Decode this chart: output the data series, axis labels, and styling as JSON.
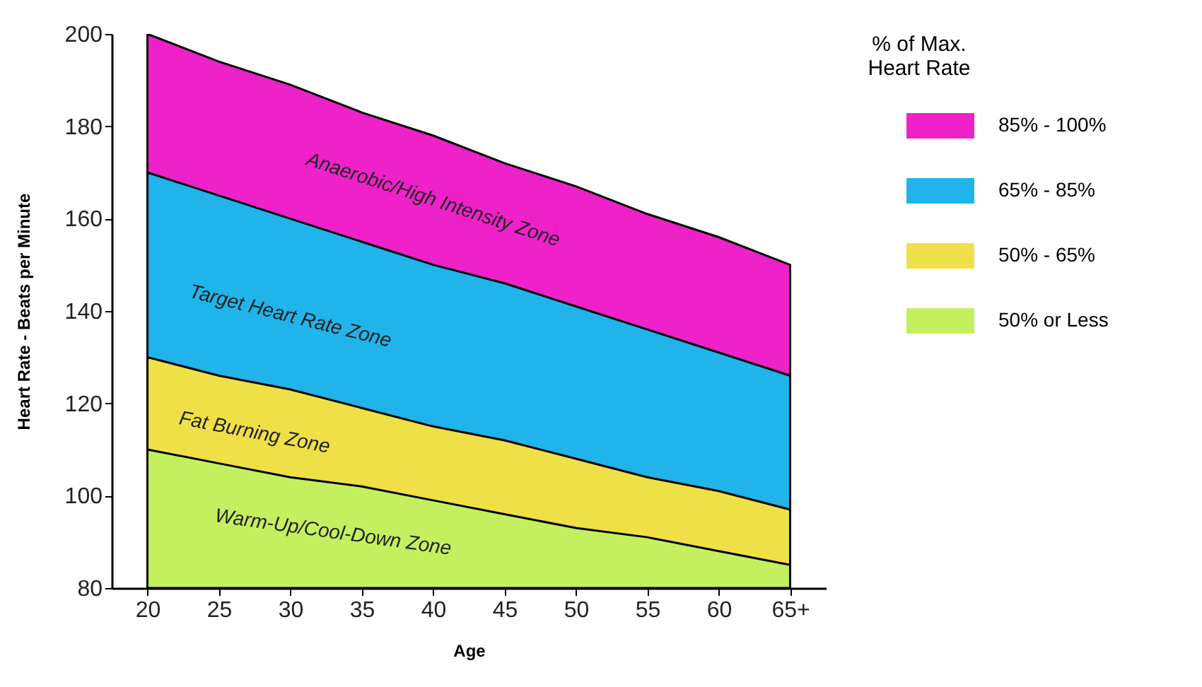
{
  "chart_data": {
    "type": "area",
    "xlabel": "Age",
    "ylabel": "Heart Rate - Beats per Minute",
    "legend_title": "% of Max. Heart Rate",
    "legend": "right",
    "categories": [
      "20",
      "25",
      "30",
      "35",
      "40",
      "45",
      "50",
      "55",
      "60",
      "65+"
    ],
    "ylim": [
      80,
      200
    ],
    "yticks": [
      80,
      100,
      120,
      140,
      160,
      180,
      200
    ],
    "series": [
      {
        "name": "85% - 100%",
        "color": "#ee22c8",
        "values": [
          200,
          194,
          189,
          183,
          178,
          172,
          167,
          161,
          156,
          150
        ]
      },
      {
        "name": "65% - 85%",
        "color": "#20b4ea",
        "values": [
          170,
          165,
          160,
          155,
          150,
          146,
          141,
          136,
          131,
          126
        ]
      },
      {
        "name": "50% - 65%",
        "color": "#f0e048",
        "values": [
          130,
          126,
          123,
          119,
          115,
          112,
          108,
          104,
          101,
          97
        ]
      },
      {
        "name": "50% or Less",
        "color": "#c4f060",
        "values": [
          110,
          107,
          104,
          102,
          99,
          96,
          93,
          91,
          88,
          85
        ]
      }
    ],
    "annotations": [
      "Anaerobic/High Intensity Zone",
      "Target Heart Rate Zone",
      "Fat Burning Zone",
      "Warm-Up/Cool-Down Zone"
    ]
  }
}
